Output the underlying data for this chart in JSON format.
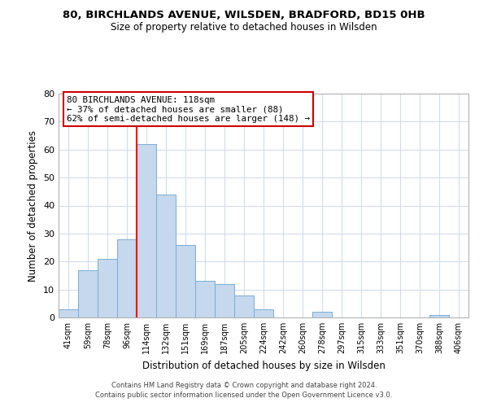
{
  "title": "80, BIRCHLANDS AVENUE, WILSDEN, BRADFORD, BD15 0HB",
  "subtitle": "Size of property relative to detached houses in Wilsden",
  "xlabel": "Distribution of detached houses by size in Wilsden",
  "ylabel": "Number of detached properties",
  "bin_labels": [
    "41sqm",
    "59sqm",
    "78sqm",
    "96sqm",
    "114sqm",
    "132sqm",
    "151sqm",
    "169sqm",
    "187sqm",
    "205sqm",
    "224sqm",
    "242sqm",
    "260sqm",
    "278sqm",
    "297sqm",
    "315sqm",
    "333sqm",
    "351sqm",
    "370sqm",
    "388sqm",
    "406sqm"
  ],
  "bar_heights": [
    3,
    17,
    21,
    28,
    62,
    44,
    26,
    13,
    12,
    8,
    3,
    0,
    0,
    2,
    0,
    0,
    0,
    0,
    0,
    1,
    0
  ],
  "bar_color": "#c5d8ed",
  "bar_edge_color": "#7aadd4",
  "red_line_x": 4,
  "ylim": [
    0,
    80
  ],
  "yticks": [
    0,
    10,
    20,
    30,
    40,
    50,
    60,
    70,
    80
  ],
  "annotation_title": "80 BIRCHLANDS AVENUE: 118sqm",
  "annotation_line1": "← 37% of detached houses are smaller (88)",
  "annotation_line2": "62% of semi-detached houses are larger (148) →",
  "annotation_box_color": "#ffffff",
  "annotation_border_color": "#cc0000",
  "footer_line1": "Contains HM Land Registry data © Crown copyright and database right 2024.",
  "footer_line2": "Contains public sector information licensed under the Open Government Licence v3.0.",
  "background_color": "#ffffff",
  "grid_color": "#d0dded"
}
